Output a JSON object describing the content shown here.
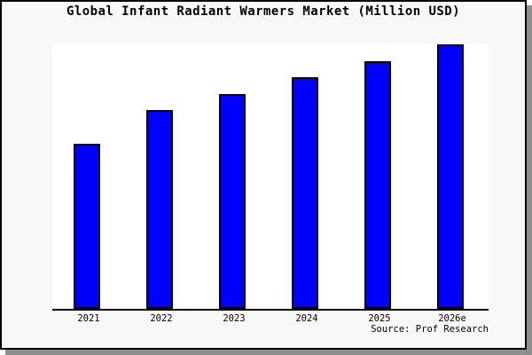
{
  "chart_data": {
    "type": "bar",
    "title": "Global Infant Radiant Warmers Market (Million USD)",
    "categories": [
      "2021",
      "2022",
      "2023",
      "2024",
      "2025",
      "2026e"
    ],
    "values": [
      100,
      120,
      130,
      140,
      150,
      160
    ],
    "value_units": "relative index (y-axis unlabeled; estimated with 2021 = 100)",
    "ylim": [
      0,
      160
    ],
    "xlabel": "",
    "ylabel": "",
    "grid": false,
    "legend": "none",
    "y_axis_shown": false,
    "source": "Source: Prof Research",
    "colors": {
      "bar_fill": "#0000fe",
      "bar_border": "#000000",
      "plot_background": "#ffffff",
      "canvas_background": "#f8f8f8",
      "frame_border": "#000000",
      "frame_shadow": "#8f8f8f",
      "text": "#000000"
    }
  }
}
